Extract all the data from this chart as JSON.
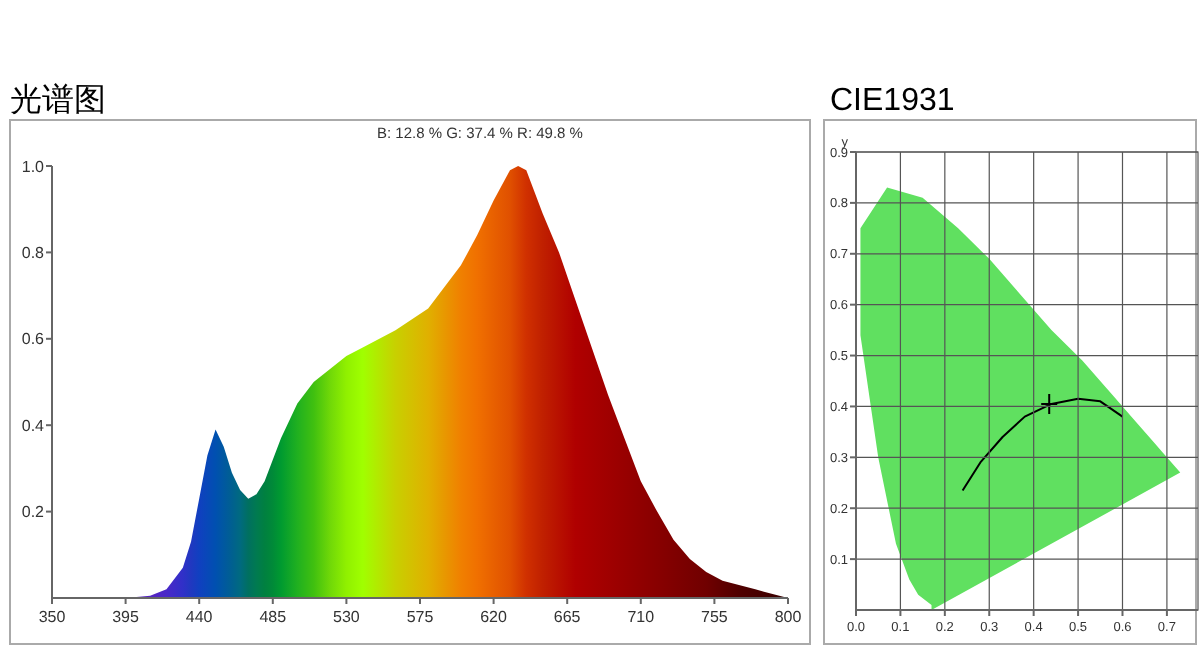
{
  "chart_data": [
    {
      "type": "area",
      "title": "光谱图",
      "annotations": [
        "B: 12.8 %  G: 37.4 %  R: 49.8 %"
      ],
      "x": [
        395,
        410,
        420,
        430,
        435,
        440,
        445,
        450,
        455,
        460,
        465,
        470,
        475,
        480,
        485,
        490,
        500,
        510,
        520,
        530,
        540,
        560,
        580,
        600,
        610,
        620,
        630,
        635,
        640,
        650,
        660,
        670,
        680,
        690,
        700,
        710,
        720,
        730,
        740,
        750,
        760,
        770,
        780,
        790,
        800
      ],
      "series": [
        {
          "values": [
            0.0,
            0.005,
            0.02,
            0.07,
            0.13,
            0.23,
            0.33,
            0.39,
            0.35,
            0.29,
            0.25,
            0.23,
            0.24,
            0.27,
            0.32,
            0.37,
            0.45,
            0.5,
            0.53,
            0.56,
            0.58,
            0.62,
            0.67,
            0.77,
            0.84,
            0.92,
            0.99,
            1.0,
            0.99,
            0.89,
            0.8,
            0.69,
            0.58,
            0.47,
            0.37,
            0.27,
            0.2,
            0.135,
            0.09,
            0.06,
            0.04,
            0.03,
            0.02,
            0.01,
            0.0
          ],
          "colors": [
            "#5020b0",
            "#5525c0",
            "#4a28c8",
            "#3030c8",
            "#2038c0",
            "#1040c0",
            "#0848b8",
            "#0050b0",
            "#0058a0",
            "#006090",
            "#006a80",
            "#007060",
            "#007a50",
            "#008040",
            "#008a38",
            "#009a30",
            "#20b020",
            "#40c010",
            "#70d808",
            "#90f000",
            "#a0ff00",
            "#c8d000",
            "#e0b000",
            "#f08000",
            "#f07000",
            "#e86000",
            "#e05000",
            "#d84000",
            "#d03000",
            "#c02000",
            "#b81000",
            "#b00000",
            "#a80000",
            "#a00000",
            "#980000",
            "#900000",
            "#880000",
            "#800000",
            "#780000",
            "#700000",
            "#600000",
            "#500000",
            "#480000",
            "#400000",
            "#380000"
          ]
        }
      ],
      "xlim": [
        350,
        800
      ],
      "xticks": [
        350,
        395,
        440,
        485,
        530,
        575,
        620,
        665,
        710,
        755,
        800
      ],
      "ylim": [
        0,
        1.0
      ],
      "yticks": [
        0.2,
        0.4,
        0.6,
        0.8,
        {
          "value": 1.0,
          "label": "1.0"
        }
      ],
      "grid": false
    },
    {
      "type": "line",
      "title": "CIE1931",
      "ylabel": "y",
      "grid": true,
      "xlim": [
        0,
        0.77
      ],
      "xticks": [
        {
          "value": 0,
          "label": "0.0"
        },
        0.1,
        0.2,
        0.3,
        0.4,
        0.5,
        0.6,
        0.7
      ],
      "ylim": [
        0,
        0.9
      ],
      "yticks": [
        0.1,
        0.2,
        0.3,
        0.4,
        0.5,
        0.6,
        0.7,
        0.8,
        0.9
      ],
      "series": [
        {
          "type": "area",
          "color": "#60e060",
          "x": [
            0.17,
            0.17,
            0.14,
            0.12,
            0.09,
            0.05,
            0.01,
            0.01,
            0.07,
            0.15,
            0.23,
            0.3,
            0.37,
            0.44,
            0.51,
            0.58,
            0.63,
            0.67,
            0.69,
            0.73,
            0.17
          ],
          "values": [
            0.0,
            0.01,
            0.03,
            0.06,
            0.13,
            0.3,
            0.54,
            0.75,
            0.83,
            0.81,
            0.75,
            0.69,
            0.62,
            0.55,
            0.49,
            0.42,
            0.37,
            0.33,
            0.31,
            0.27,
            0.0
          ]
        },
        {
          "type": "line",
          "color": "#000000",
          "x": [
            0.24,
            0.28,
            0.33,
            0.38,
            0.44,
            0.5,
            0.55,
            0.6
          ],
          "values": [
            0.235,
            0.29,
            0.34,
            0.38,
            0.405,
            0.415,
            0.41,
            0.38
          ]
        },
        {
          "type": "scatter",
          "color": "#000000",
          "marker": "cross",
          "x": [
            0.435
          ],
          "values": [
            0.405
          ]
        }
      ]
    }
  ]
}
